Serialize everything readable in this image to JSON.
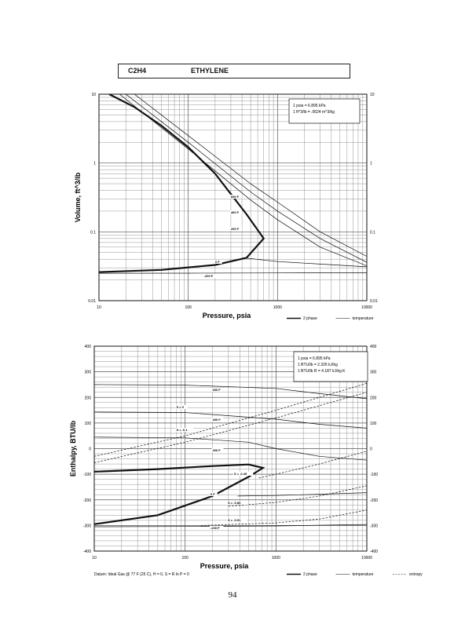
{
  "header": {
    "code": "C2H4",
    "name": "ETHYLENE"
  },
  "page_number": "94",
  "chart_data": [
    {
      "type": "line",
      "xlabel": "Pressure,  psia",
      "ylabel": "Volume, ft^3/lb",
      "xscale": "log",
      "yscale": "log",
      "xlim": [
        10,
        10000
      ],
      "ylim": [
        0.01,
        10
      ],
      "xticks": [
        "10",
        "100",
        "1000",
        "10000"
      ],
      "yticks": [
        "0.01",
        "0.1",
        "1",
        "10"
      ],
      "grid": true,
      "notes": [
        "1 psia = 6.895 kPa",
        "1 ft^3/lb = .0624 m^3/kg"
      ],
      "legend": [
        "2 phase",
        "temperature"
      ],
      "series": [
        {
          "name": "2 phase",
          "style": "bold",
          "points": [
            [
              10,
              0.026
            ],
            [
              50,
              0.028
            ],
            [
              200,
              0.033
            ],
            [
              450,
              0.042
            ],
            [
              700,
              0.08
            ],
            [
              450,
              0.18
            ],
            [
              200,
              0.7
            ],
            [
              100,
              1.7
            ],
            [
              50,
              3.5
            ],
            [
              25,
              6.5
            ],
            [
              13,
              10
            ]
          ]
        },
        {
          "name": "600 F",
          "points": [
            [
              25,
              10
            ],
            [
              100,
              2.5
            ],
            [
              500,
              0.5
            ],
            [
              1000,
              0.27
            ],
            [
              3000,
              0.1
            ],
            [
              10000,
              0.044
            ]
          ]
        },
        {
          "name": "400 F",
          "points": [
            [
              20,
              10
            ],
            [
              100,
              2
            ],
            [
              500,
              0.38
            ],
            [
              1000,
              0.2
            ],
            [
              3000,
              0.08
            ],
            [
              10000,
              0.036
            ]
          ]
        },
        {
          "name": "200 F",
          "points": [
            [
              17,
              10
            ],
            [
              100,
              1.6
            ],
            [
              500,
              0.29
            ],
            [
              1000,
              0.15
            ],
            [
              3000,
              0.06
            ],
            [
              10000,
              0.032
            ]
          ]
        },
        {
          "name": "0 F",
          "points": [
            [
              410,
              0.042
            ],
            [
              1000,
              0.037
            ],
            [
              3000,
              0.034
            ],
            [
              10000,
              0.031
            ]
          ]
        },
        {
          "name": "-200 F",
          "points": [
            [
              10,
              0.025
            ],
            [
              100,
              0.0251
            ],
            [
              1000,
              0.0253
            ],
            [
              10000,
              0.0255
            ]
          ]
        }
      ],
      "annotations": [
        "600 F",
        "400 F",
        "200 F",
        "0 F",
        "-200 F"
      ]
    },
    {
      "type": "line",
      "xlabel": "Pressure,  psia",
      "ylabel": "Enthalpy, BTU/lb",
      "xscale": "log",
      "xlim": [
        10,
        10000
      ],
      "ylim": [
        -400,
        400
      ],
      "xticks": [
        "10",
        "100",
        "1000",
        "10000"
      ],
      "yticks": [
        "400",
        "300",
        "200",
        "100",
        "0",
        "-100",
        "-200",
        "-300",
        "-400"
      ],
      "grid": true,
      "notes": [
        "1 psia = 6.895 kPa",
        "1 BTU/lb = 2.326 kJ/kg",
        "1 BTU/lb R = 4.187 kJ/kg K"
      ],
      "footnote": "Datum: Ideal Gas @ 77 F (25 C),  H = 0,  S = R ln P = 0",
      "legend": [
        "2 phase",
        "temperature",
        "entropy"
      ],
      "series": [
        {
          "name": "2 phase",
          "style": "bold",
          "points": [
            [
              10,
              -295
            ],
            [
              50,
              -260
            ],
            [
              200,
              -185
            ],
            [
              500,
              -110
            ],
            [
              720,
              -75
            ],
            [
              500,
              -62
            ],
            [
              200,
              -68
            ],
            [
              50,
              -80
            ],
            [
              10,
              -90
            ]
          ]
        },
        {
          "name": "600 F",
          "points": [
            [
              10,
              250
            ],
            [
              100,
              248
            ],
            [
              1000,
              235
            ],
            [
              3000,
              215
            ],
            [
              10000,
              195
            ]
          ]
        },
        {
          "name": "400 F",
          "points": [
            [
              10,
              143
            ],
            [
              100,
              141
            ],
            [
              1000,
              115
            ],
            [
              3000,
              95
            ],
            [
              10000,
              80
            ]
          ]
        },
        {
          "name": "200 F",
          "points": [
            [
              10,
              45
            ],
            [
              100,
              42
            ],
            [
              500,
              25
            ],
            [
              1000,
              0
            ],
            [
              3000,
              -30
            ],
            [
              10000,
              -45
            ]
          ]
        },
        {
          "name": "0 F",
          "points": [
            [
              380,
              -185
            ],
            [
              1000,
              -183
            ],
            [
              3000,
              -178
            ],
            [
              10000,
              -172
            ]
          ]
        },
        {
          "name": "-200 F",
          "points": [
            [
              10,
              -305
            ],
            [
              100,
              -304
            ],
            [
              1000,
              -302
            ],
            [
              10000,
              -296
            ]
          ]
        },
        {
          "name": "S = 0",
          "style": "dashed",
          "points": [
            [
              10,
              -30
            ],
            [
              100,
              50
            ],
            [
              1000,
              150
            ],
            [
              10000,
              255
            ]
          ]
        },
        {
          "name": "S = -0.1",
          "style": "dashed",
          "points": [
            [
              10,
              -55
            ],
            [
              100,
              25
            ],
            [
              1000,
              120
            ],
            [
              10000,
              220
            ]
          ]
        },
        {
          "name": "S = -0.45",
          "style": "dashed",
          "points": [
            [
              650,
              -115
            ],
            [
              1000,
              -100
            ],
            [
              3000,
              -60
            ],
            [
              10000,
              -10
            ]
          ]
        },
        {
          "name": "S = -0.85",
          "style": "dashed",
          "points": [
            [
              300,
              -225
            ],
            [
              1000,
              -210
            ],
            [
              3000,
              -185
            ],
            [
              10000,
              -145
            ]
          ]
        },
        {
          "name": "S = -0.91",
          "style": "dashed",
          "points": [
            [
              150,
              -300
            ],
            [
              1000,
              -290
            ],
            [
              3000,
              -275
            ],
            [
              10000,
              -240
            ]
          ]
        }
      ],
      "annotations": [
        "600 F",
        "400 F",
        "200 F",
        "0 F",
        "-200 F",
        "S = 0",
        "S = -0.1",
        "S = -0.45",
        "S = -0.85",
        "S = -0.91"
      ]
    }
  ]
}
